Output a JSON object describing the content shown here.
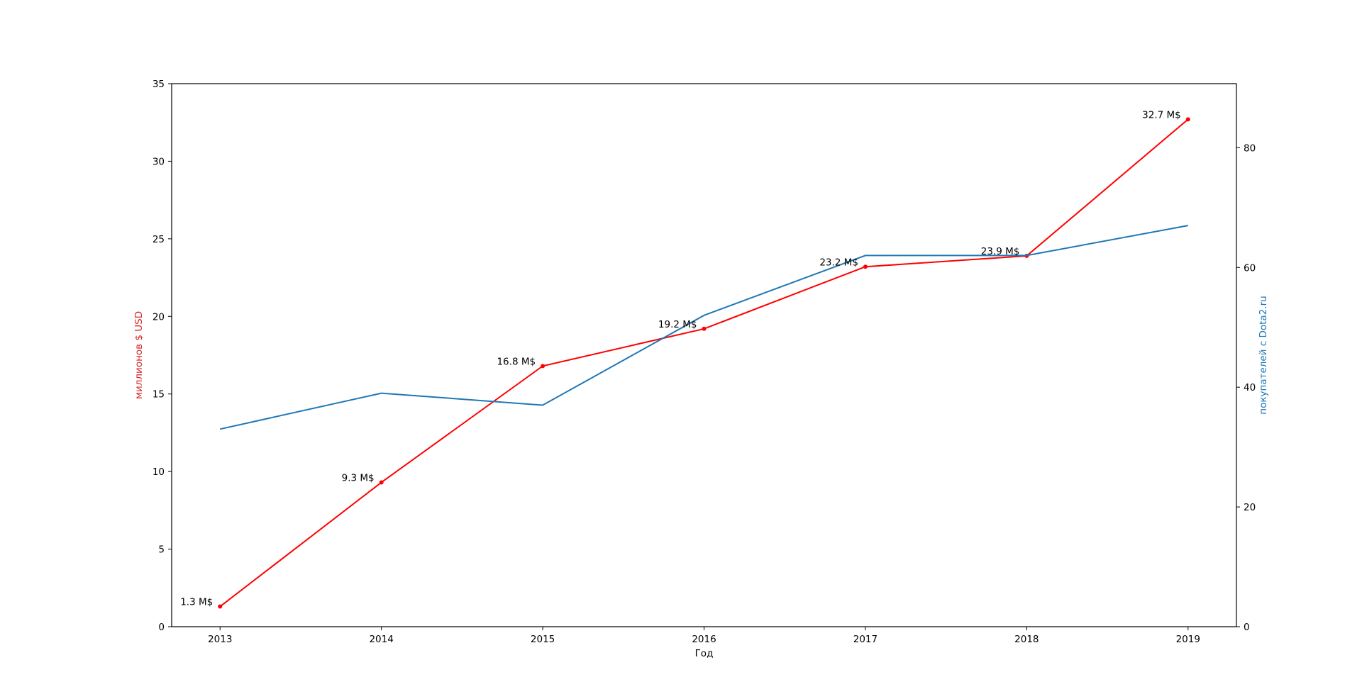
{
  "chart_data": {
    "type": "line",
    "x": [
      2013,
      2014,
      2015,
      2016,
      2017,
      2018,
      2019
    ],
    "xlabel": "Год",
    "xlim": [
      2012.7,
      2019.3
    ],
    "y_left": {
      "label": "миллионов $ USD",
      "color": "#d62728",
      "ylim": [
        0,
        35
      ],
      "ticks": [
        0,
        5,
        10,
        15,
        20,
        25,
        30,
        35
      ]
    },
    "y_right": {
      "label": "покупателей с Dota2.ru",
      "color": "#1f77b4",
      "ylim": [
        0,
        90.7
      ],
      "ticks": [
        0,
        20,
        40,
        60,
        80
      ]
    },
    "series": [
      {
        "axis": "left",
        "color": "#ff0000",
        "marker": "dot",
        "values": [
          1.3,
          9.3,
          16.8,
          19.2,
          23.2,
          23.9,
          32.7
        ],
        "data_labels": [
          "1.3 M$",
          "9.3 M$",
          "16.8 M$",
          "19.2 M$",
          "23.2 M$",
          "23.9 M$",
          "32.7 M$"
        ]
      },
      {
        "axis": "right",
        "color": "#1f77b4",
        "marker": "none",
        "values": [
          33,
          39,
          37,
          52,
          62,
          62,
          67
        ]
      }
    ],
    "grid": false,
    "legend": "none"
  }
}
